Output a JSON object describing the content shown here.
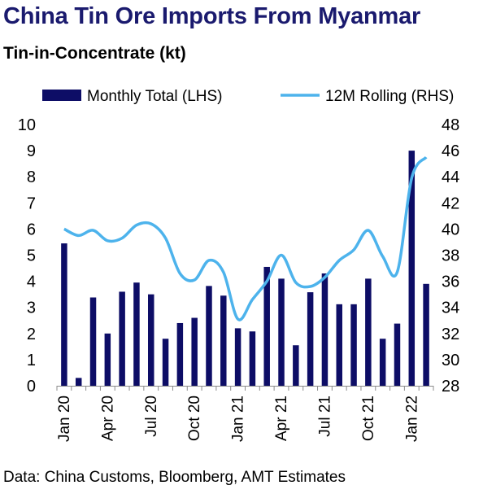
{
  "title": "China Tin Ore Imports From Myanmar",
  "subtitle": "Tin-in-Concentrate (kt)",
  "source": "Data: China Customs, Bloomberg, AMT Estimates",
  "colors": {
    "bar": "#0d0d66",
    "line": "#4db3ec",
    "title": "#1a1a6e"
  },
  "chart_data": {
    "type": "bar",
    "title": "China Tin Ore Imports From Myanmar",
    "subtitle": "Tin-in-Concentrate (kt)",
    "categories": [
      "Jan 20",
      "Feb 20",
      "Mar 20",
      "Apr 20",
      "May 20",
      "Jun 20",
      "Jul 20",
      "Aug 20",
      "Sep 20",
      "Oct 20",
      "Nov 20",
      "Dec 20",
      "Jan 21",
      "Feb 21",
      "Mar 21",
      "Apr 21",
      "May 21",
      "Jun 21",
      "Jul 21",
      "Aug 21",
      "Sep 21",
      "Oct 21",
      "Nov 21",
      "Dec 21",
      "Jan 22",
      "Feb 22"
    ],
    "x_tick_labels": [
      "Jan 20",
      "Apr 20",
      "Jul 20",
      "Oct 20",
      "Jan 21",
      "Apr 21",
      "Jul 21",
      "Oct 21",
      "Jan 22"
    ],
    "x_tick_every": 3,
    "series": [
      {
        "name": "Monthly Total (LHS)",
        "type": "bar",
        "axis": "left",
        "values": [
          5.45,
          0.3,
          3.38,
          2.0,
          3.6,
          3.95,
          3.5,
          1.8,
          2.4,
          2.6,
          3.82,
          3.45,
          2.2,
          2.08,
          4.55,
          4.1,
          1.55,
          3.58,
          4.3,
          3.12,
          3.12,
          4.1,
          1.8,
          2.38,
          9.0,
          3.9
        ]
      },
      {
        "name": "12M Rolling (RHS)",
        "type": "line",
        "axis": "right",
        "values": [
          40.0,
          39.5,
          39.9,
          39.1,
          39.3,
          40.3,
          40.4,
          39.3,
          36.6,
          36.1,
          37.6,
          36.7,
          33.1,
          34.6,
          36.0,
          38.0,
          35.9,
          35.6,
          36.3,
          37.6,
          38.4,
          39.9,
          37.9,
          36.7,
          43.9,
          45.5
        ]
      }
    ],
    "y_left": {
      "min": 0,
      "max": 10,
      "step": 1
    },
    "y_right": {
      "min": 28,
      "max": 48,
      "step": 2
    },
    "legend_position": "top",
    "grid": false
  }
}
